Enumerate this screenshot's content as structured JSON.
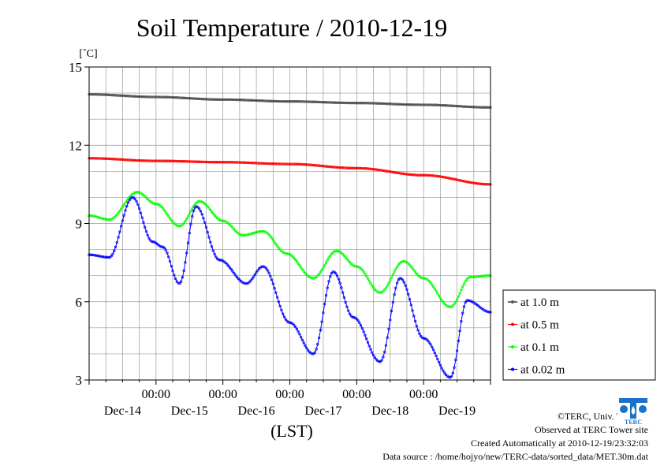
{
  "chart_data": {
    "type": "line",
    "title": "Soil Temperature / 2010-12-19",
    "ylabel": "[˚C]",
    "xlabel": "(LST)",
    "ylim": [
      3,
      15
    ],
    "yticks": [
      3,
      6,
      9,
      12,
      15
    ],
    "xlim_days": [
      0,
      6
    ],
    "grid": true,
    "legend_position": "right",
    "x_time_labels": [
      "00:00",
      "00:00",
      "00:00",
      "00:00",
      "00:00"
    ],
    "x_date_labels": [
      "Dec-14",
      "Dec-15",
      "Dec-16",
      "Dec-17",
      "Dec-18",
      "Dec-19"
    ],
    "series": [
      {
        "name": "at 1.0 m",
        "color": "#000000",
        "marker": "#555555",
        "x": [
          0,
          1,
          2,
          3,
          4,
          5,
          6
        ],
        "y": [
          13.95,
          13.85,
          13.75,
          13.68,
          13.62,
          13.55,
          13.45
        ]
      },
      {
        "name": "at 0.5 m",
        "color": "#ff0000",
        "marker": "#ff0000",
        "x": [
          0,
          1,
          2,
          3,
          4,
          5,
          6
        ],
        "y": [
          11.5,
          11.4,
          11.35,
          11.28,
          11.12,
          10.85,
          10.5
        ]
      },
      {
        "name": "at 0.1 m",
        "color": "#00ff00",
        "marker": "#00ff00",
        "x": [
          0,
          0.3,
          0.72,
          1.0,
          1.35,
          1.65,
          2.0,
          2.3,
          2.6,
          2.95,
          3.35,
          3.7,
          4.0,
          4.35,
          4.7,
          5.0,
          5.4,
          5.7,
          6.0
        ],
        "y": [
          9.3,
          9.15,
          10.2,
          9.75,
          8.9,
          9.85,
          9.1,
          8.55,
          8.7,
          7.85,
          6.9,
          7.95,
          7.35,
          6.35,
          7.55,
          6.9,
          5.8,
          6.95,
          7.0
        ]
      },
      {
        "name": "at 0.02 m",
        "color": "#0000ff",
        "marker": "#0000ff",
        "x": [
          0,
          0.3,
          0.65,
          0.95,
          1.1,
          1.35,
          1.6,
          1.95,
          2.35,
          2.6,
          3.0,
          3.35,
          3.65,
          3.95,
          4.35,
          4.65,
          5.0,
          5.4,
          5.65,
          6.0
        ],
        "y": [
          7.8,
          7.7,
          10.0,
          8.3,
          8.1,
          6.7,
          9.65,
          7.6,
          6.7,
          7.35,
          5.2,
          4.0,
          7.15,
          5.4,
          3.7,
          6.9,
          4.6,
          3.1,
          6.05,
          5.6
        ]
      }
    ]
  },
  "footer": {
    "copyright": "©TERC, Univ. Tsukuba",
    "site": "Observed at TERC Tower site",
    "created": "Created Automatically at 2010-12-19/23:32:03",
    "source": "Data source : /home/hojyo/new/TERC-data/sorted_data/MET.30m.dat"
  },
  "logo_text": "TERC"
}
